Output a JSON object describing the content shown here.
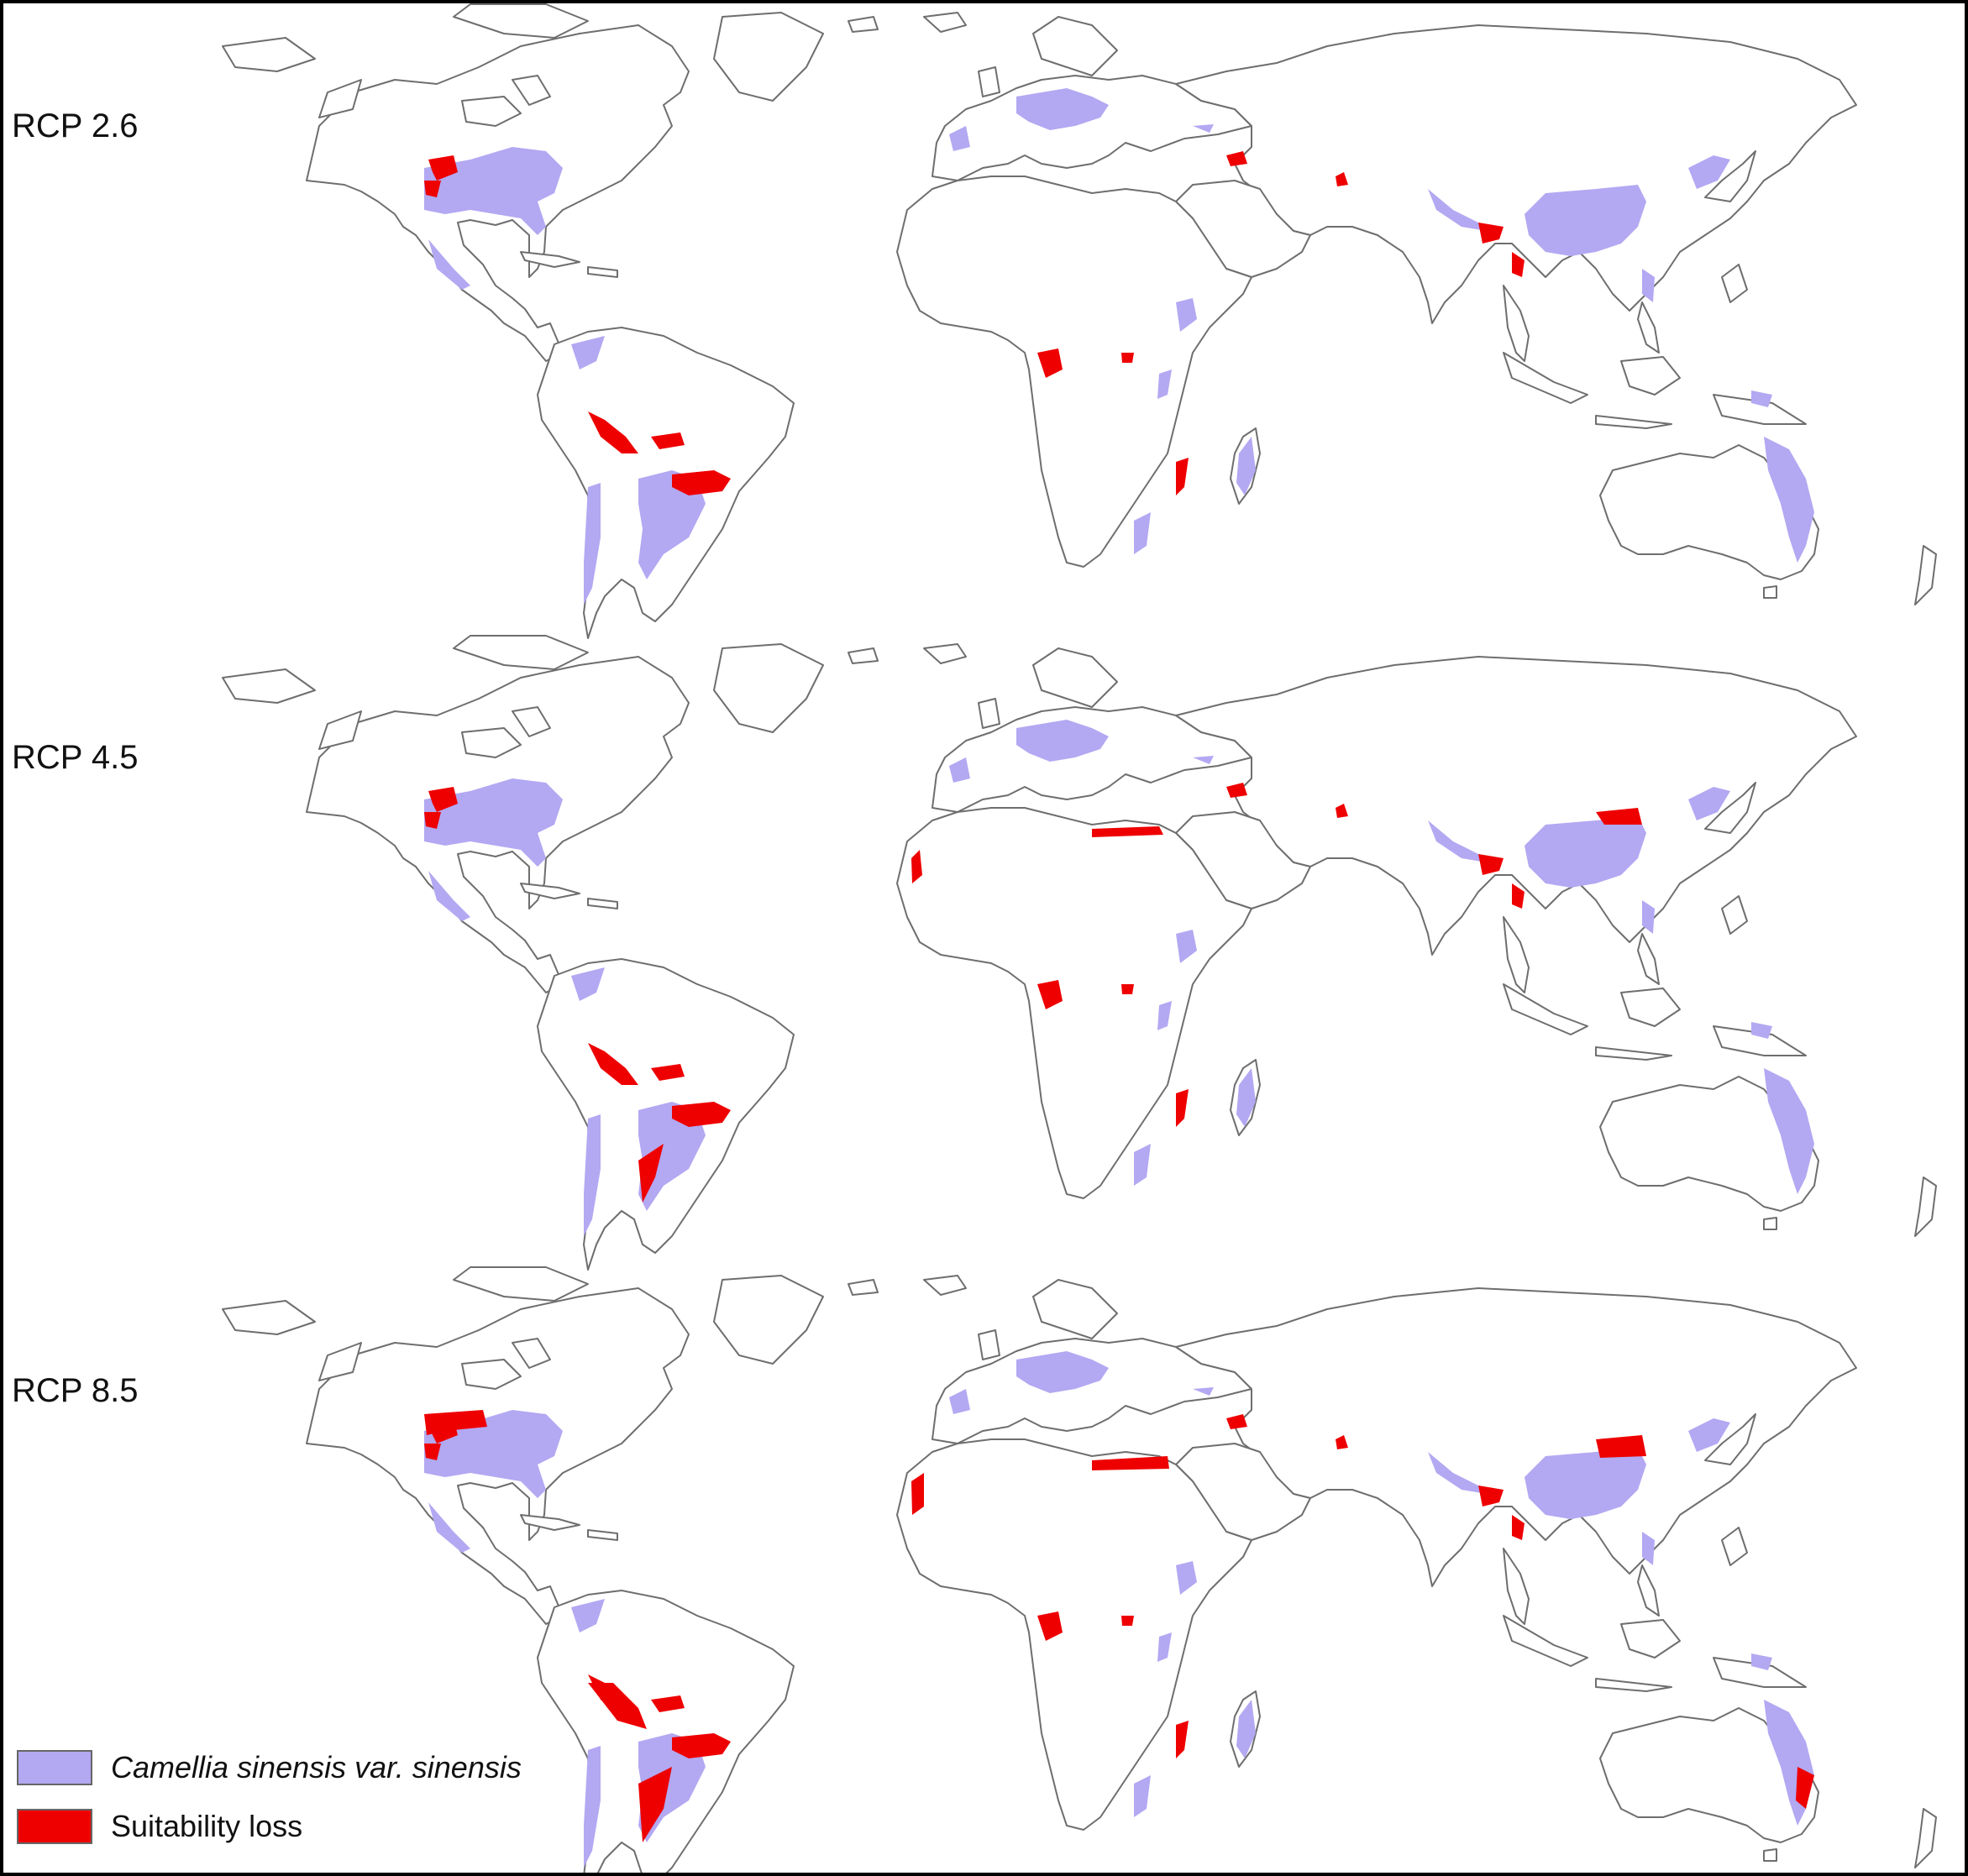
{
  "panels": [
    {
      "label": "RCP 2.6",
      "scenario": "rcp26"
    },
    {
      "label": "RCP 4.5",
      "scenario": "rcp45"
    },
    {
      "label": "RCP 8.5",
      "scenario": "rcp85"
    }
  ],
  "legend": {
    "items": [
      {
        "label": "Camellia sinensis var. sinensis",
        "color": "#b3a8f2"
      },
      {
        "label": "Suitability loss",
        "color": "#ee0000"
      }
    ]
  },
  "colors": {
    "suitable": "#b3a8f2",
    "loss": "#ee0000",
    "land_outline": "#6e6e6e",
    "frame": "#000000",
    "background": "#ffffff"
  }
}
